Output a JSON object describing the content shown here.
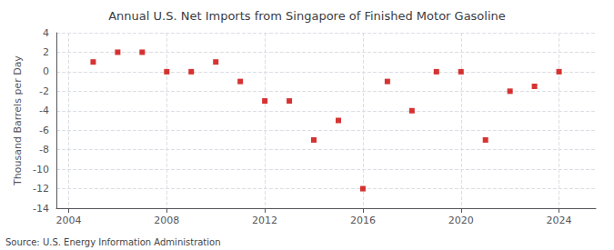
{
  "chart_data": {
    "type": "scatter",
    "title": "Annual U.S. Net Imports from Singapore of Finished Motor Gasoline",
    "ylabel": "Thousand Barrels per Day",
    "annotations": [
      "Source: U.S. Energy Information Administration"
    ],
    "x": [
      2005,
      2006,
      2007,
      2008,
      2009,
      2010,
      2011,
      2012,
      2013,
      2014,
      2015,
      2016,
      2017,
      2018,
      2019,
      2020,
      2021,
      2022,
      2023,
      2024
    ],
    "values": [
      1.0,
      2.0,
      2.0,
      0.0,
      0.0,
      1.0,
      -1.0,
      -3.0,
      -3.0,
      -7.0,
      -5.0,
      -12.0,
      -1.0,
      -4.0,
      0.0,
      0.0,
      -7.0,
      -2.0,
      -1.5,
      0.0
    ],
    "color": "#cc0000",
    "marker": "square",
    "xlim": [
      2003.5,
      2025.5
    ],
    "ylim": [
      -14,
      4
    ],
    "xticks": [
      2004,
      2008,
      2012,
      2016,
      2020,
      2024
    ],
    "yticks": [
      4,
      2,
      0,
      -2,
      -4,
      -6,
      -8,
      -10,
      -12,
      -14
    ],
    "grid": true
  }
}
